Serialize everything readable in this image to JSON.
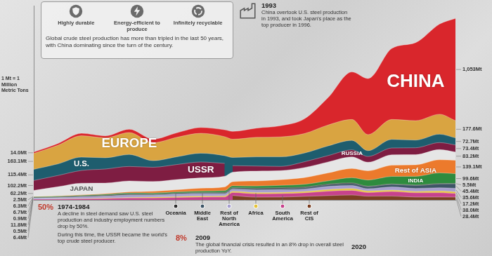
{
  "header": {
    "features": [
      "Highly durable",
      "Energy-efficient to produce",
      "Infinitely recyclable"
    ],
    "text": "Global crude steel production has more than tripled in the last 50 years, with China dominating since the turn of the century."
  },
  "unit_note": "1 Mt = 1 Million Metric Tons",
  "annotations": [
    {
      "title": "1993",
      "text": "China overtook U.S. steel production in 1993, and took Japan's place as the top producer in 1996."
    },
    {
      "title": "1974-1984",
      "badge": "50%",
      "text": "A decline in steel demand saw U.S. steel production and industry employment numbers drop by 50%.",
      "note": "During this time, the USSR became the world's top crude steel producer."
    },
    {
      "title": "2009",
      "badge": "8%",
      "text": "The global financial crisis resulted in an 8% drop in overall steel production YoY."
    },
    {
      "title": "2020"
    }
  ],
  "chart_data": {
    "type": "area",
    "stacked": true,
    "grid": false,
    "tick_labels": false,
    "x": [
      1967,
      1970,
      1973,
      1976,
      1979,
      1982,
      1985,
      1988,
      1991,
      1992,
      1995,
      1998,
      2001,
      2004,
      2007,
      2009,
      2012,
      2015,
      2018,
      2020
    ],
    "xlim": [
      1967,
      2020
    ],
    "ylim": [
      0,
      2000
    ],
    "series": [
      {
        "name": "CHINA",
        "color": "#d9262c",
        "values": [
          14.0,
          17.8,
          25.2,
          20.5,
          34.5,
          37.2,
          46.8,
          59.4,
          71.0,
          80.9,
          95.4,
          114.6,
          151.6,
          282.9,
          489.7,
          577.1,
          731.0,
          803.8,
          928.3,
          1053.0
        ],
        "value_labels": [
          "14.0Mt",
          null,
          null,
          null,
          null,
          null,
          null,
          null,
          null,
          null,
          null,
          null,
          null,
          null,
          null,
          null,
          null,
          null,
          null,
          "1,053Mt"
        ]
      },
      {
        "name": "EUROPE",
        "color": "#d9a441",
        "values": [
          163.1,
          191,
          220,
          205,
          225,
          185,
          200,
          205,
          195,
          188,
          200,
          205,
          200,
          215,
          215,
          165,
          205,
          200,
          205,
          177.6
        ],
        "value_labels": [
          "163.1Mt",
          null,
          null,
          null,
          null,
          null,
          null,
          null,
          null,
          null,
          null,
          null,
          null,
          null,
          null,
          null,
          null,
          null,
          null,
          "177.6Mt"
        ]
      },
      {
        "name": "U.S.",
        "color": "#1e5d6e",
        "values": [
          115.4,
          119.3,
          136.8,
          116.1,
          123.7,
          67.7,
          80.1,
          90.7,
          79.7,
          84.3,
          95.2,
          98.7,
          90.1,
          99.7,
          98.1,
          59.4,
          88.7,
          78.8,
          86.6,
          72.7
        ],
        "value_labels": [
          "115.4Mt",
          null,
          null,
          null,
          null,
          null,
          null,
          null,
          null,
          null,
          null,
          null,
          null,
          null,
          null,
          null,
          null,
          null,
          null,
          "72.7Mt"
        ]
      },
      {
        "name": "RUSSIA",
        "color": "#7e1d42",
        "values": [
          null,
          null,
          null,
          null,
          null,
          null,
          null,
          null,
          null,
          67.0,
          51.6,
          43.7,
          59.0,
          65.6,
          72.4,
          60.0,
          70.2,
          70.9,
          72.1,
          73.4
        ],
        "value_labels": [
          null,
          null,
          null,
          null,
          null,
          null,
          null,
          null,
          null,
          null,
          null,
          null,
          null,
          null,
          null,
          null,
          null,
          null,
          null,
          "73.4Mt"
        ]
      },
      {
        "name": "USSR",
        "color": "#7e1d42",
        "values": [
          102.2,
          115.9,
          131.5,
          144.8,
          149.1,
          147.2,
          154.7,
          163.0,
          132.8,
          null,
          null,
          null,
          null,
          null,
          null,
          null,
          null,
          null,
          null,
          null
        ],
        "value_labels": [
          "102.2Mt",
          null,
          null,
          null,
          null,
          null,
          null,
          null,
          null,
          null,
          null,
          null,
          null,
          null,
          null,
          null,
          null,
          null,
          null,
          null
        ]
      },
      {
        "name": "JAPAN",
        "color": "#e6e6e6",
        "values": [
          62.2,
          93.3,
          119.3,
          107.4,
          111.7,
          99.5,
          105.3,
          105.7,
          109.6,
          98.1,
          101.6,
          93.5,
          102.9,
          112.7,
          118.7,
          87.5,
          107.2,
          105.1,
          104.3,
          83.2
        ],
        "value_labels": [
          "62.2Mt",
          null,
          null,
          null,
          null,
          null,
          null,
          null,
          null,
          null,
          null,
          null,
          null,
          null,
          null,
          null,
          null,
          null,
          null,
          "83.2Mt"
        ]
      },
      {
        "name": "Rest of ASIA",
        "color": "#ec7a2c",
        "values": [
          2.5,
          3.5,
          5.5,
          8,
          12,
          18,
          22,
          30,
          38,
          42,
          52,
          58,
          70,
          82,
          95,
          95,
          115,
          118,
          135,
          139.1
        ],
        "value_labels": [
          "2.5Mt",
          null,
          null,
          null,
          null,
          null,
          null,
          null,
          null,
          null,
          null,
          null,
          null,
          null,
          null,
          null,
          null,
          null,
          null,
          "139.1Mt"
        ]
      },
      {
        "name": "INDIA",
        "color": "#2e8b3e",
        "values": [
          6.3,
          6.3,
          6.9,
          9.4,
          10.1,
          11.0,
          11.9,
          14.3,
          17.1,
          18.1,
          22.0,
          23.5,
          27.3,
          32.6,
          53.5,
          63.5,
          77.3,
          89.0,
          109.3,
          99.6
        ],
        "value_labels": [
          "6.3Mt",
          null,
          null,
          null,
          null,
          null,
          null,
          null,
          null,
          null,
          null,
          null,
          null,
          null,
          null,
          null,
          null,
          null,
          null,
          "99.6Mt"
        ]
      },
      {
        "name": "Oceania",
        "color": "#2f2f2f",
        "values": [
          6.7,
          7.2,
          8.0,
          8.1,
          8.5,
          7.0,
          7.2,
          6.5,
          7.0,
          7.5,
          9.2,
          9.7,
          7.8,
          8.2,
          8.7,
          6.0,
          5.7,
          5.7,
          6.2,
          5.5
        ],
        "value_labels": [
          "6.7Mt",
          null,
          null,
          null,
          null,
          null,
          null,
          null,
          null,
          null,
          null,
          null,
          null,
          null,
          null,
          null,
          null,
          null,
          null,
          "5.5Mt"
        ]
      },
      {
        "name": "Middle East",
        "color": "#3d5566",
        "values": [
          0.9,
          1.0,
          1.5,
          2.5,
          3.5,
          4.5,
          6.0,
          7.5,
          8.5,
          9.0,
          10.5,
          12.0,
          14.0,
          16.0,
          18.0,
          20.5,
          25.5,
          29.8,
          38.2,
          45.4
        ],
        "value_labels": [
          "0.9Mt",
          null,
          null,
          null,
          null,
          null,
          null,
          null,
          null,
          null,
          null,
          null,
          null,
          null,
          null,
          null,
          null,
          null,
          null,
          "45.4Mt"
        ]
      },
      {
        "name": "Rest of North America",
        "color": "#a79fcf",
        "values": [
          11.8,
          13.8,
          17.1,
          18.5,
          23.2,
          19.7,
          22.1,
          22.7,
          20.7,
          22.0,
          25.5,
          26.9,
          24.0,
          32.3,
          31.8,
          23.4,
          32.4,
          31.1,
          33.4,
          35.6
        ],
        "value_labels": [
          "11.8Mt",
          null,
          null,
          null,
          null,
          null,
          null,
          null,
          null,
          null,
          null,
          null,
          null,
          null,
          null,
          null,
          null,
          null,
          null,
          "35.6Mt"
        ]
      },
      {
        "name": "Africa",
        "color": "#e5c33a",
        "values": [
          0.5,
          1.5,
          3.0,
          5.0,
          7.0,
          9.0,
          10.0,
          11.0,
          12.0,
          12.5,
          13.0,
          12.5,
          14.0,
          17.0,
          18.4,
          15.5,
          15.0,
          13.7,
          17.4,
          17.2
        ],
        "value_labels": [
          "0.5Mt",
          null,
          null,
          null,
          null,
          null,
          null,
          null,
          null,
          null,
          null,
          null,
          null,
          null,
          null,
          null,
          null,
          null,
          null,
          "17.2Mt"
        ]
      },
      {
        "name": "South America",
        "color": "#c7428c",
        "values": [
          6.4,
          8.0,
          10.5,
          14.0,
          19.0,
          20.0,
          25.0,
          29.0,
          30.0,
          31.0,
          35.0,
          36.0,
          37.0,
          45.9,
          48.1,
          37.8,
          46.9,
          44.4,
          44.3,
          38.0
        ],
        "value_labels": [
          "6.4Mt",
          null,
          null,
          null,
          null,
          null,
          null,
          null,
          null,
          null,
          null,
          null,
          null,
          null,
          null,
          null,
          null,
          null,
          null,
          "38.0Mt"
        ]
      },
      {
        "name": "Rest of CIS",
        "color": "#7b3f22",
        "values": [
          null,
          null,
          null,
          null,
          null,
          null,
          null,
          null,
          null,
          45.0,
          28.0,
          29.0,
          36.0,
          44.0,
          50.0,
          38.0,
          39.0,
          29.0,
          29.5,
          28.4
        ],
        "value_labels": [
          null,
          null,
          null,
          null,
          null,
          null,
          null,
          null,
          null,
          null,
          null,
          null,
          null,
          null,
          null,
          null,
          null,
          null,
          null,
          "28.4Mt"
        ]
      }
    ]
  }
}
